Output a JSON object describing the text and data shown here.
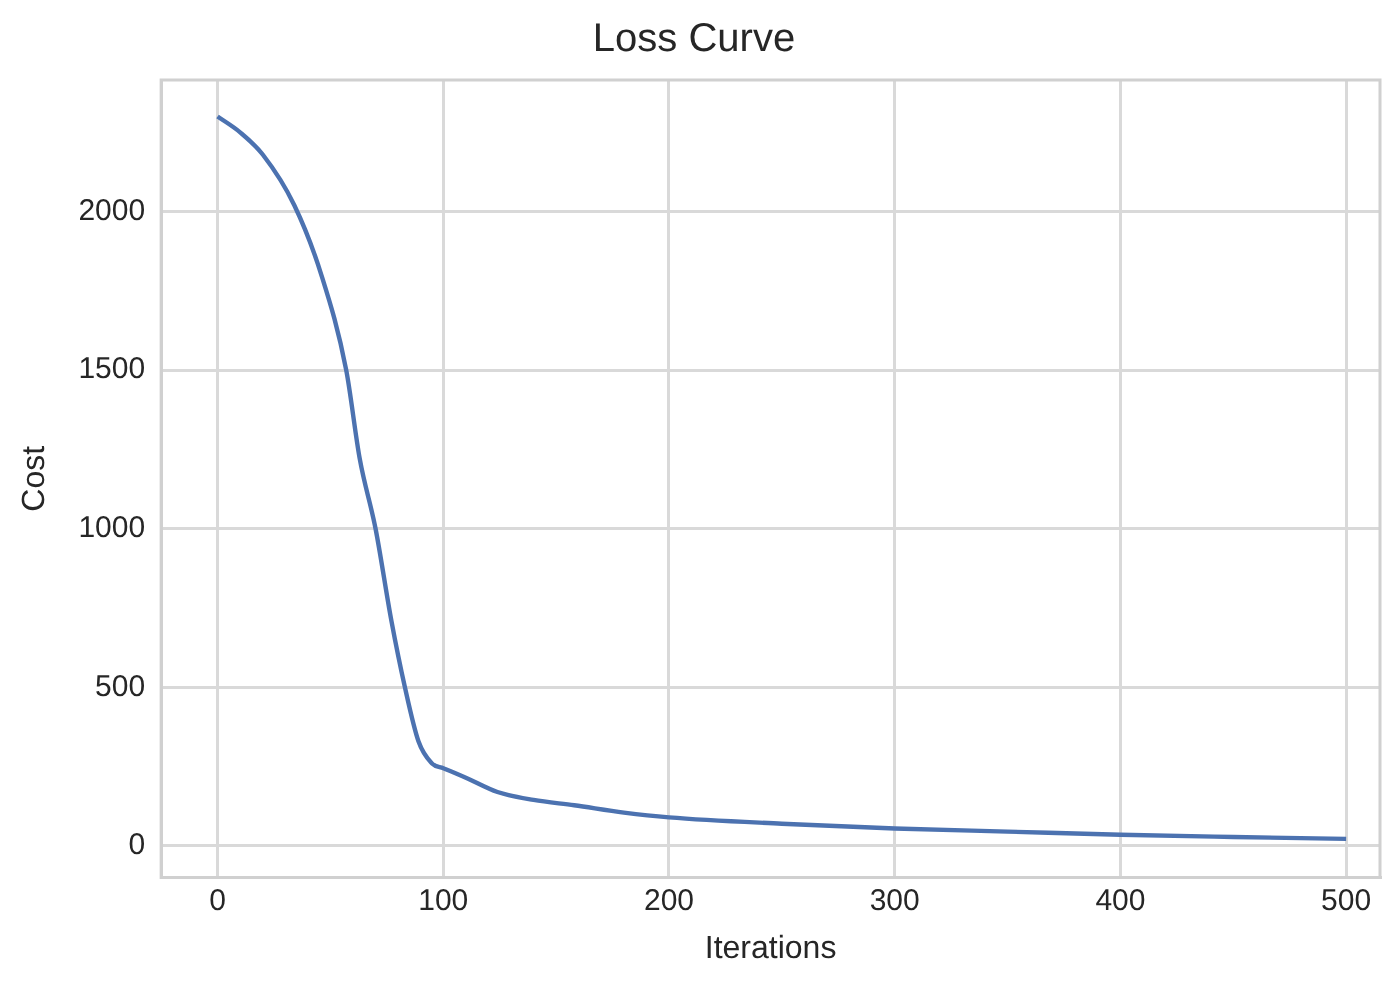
{
  "chart_data": {
    "type": "line",
    "title": "Loss Curve",
    "xlabel": "Iterations",
    "ylabel": "Cost",
    "x": [
      0,
      10,
      20,
      34,
      46,
      57,
      63,
      70,
      77,
      83,
      89,
      95,
      100,
      110,
      124,
      140,
      158,
      180,
      200,
      250,
      300,
      350,
      400,
      450,
      500
    ],
    "series": [
      {
        "color": "#4c72b0",
        "values": [
          2300,
          2250,
          2180,
          2020,
          1800,
          1500,
          1220,
          1000,
          710,
          500,
          330,
          260,
          245,
          215,
          170,
          145,
          128,
          105,
          90,
          70,
          55,
          45,
          35,
          28,
          22
        ]
      }
    ],
    "xlim": [
      -25,
      515
    ],
    "ylim": [
      -100,
      2415
    ],
    "xticks": [
      0,
      100,
      200,
      300,
      400,
      500
    ],
    "yticks": [
      0,
      500,
      1000,
      1500,
      2000
    ],
    "grid": true,
    "legend": false,
    "marker": "none",
    "line_style": "solid"
  }
}
